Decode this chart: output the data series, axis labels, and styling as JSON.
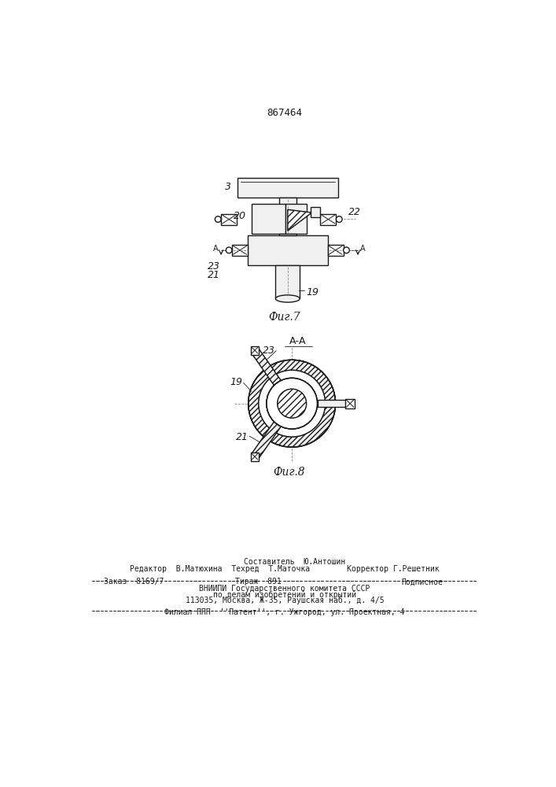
{
  "patent_number": "867464",
  "background_color": "#ffffff",
  "line_color": "#1a1a1a",
  "fig7_label": "Фиг.7",
  "fig8_label": "Фиг.8",
  "section_label": "А-А",
  "footer_line1": "Составитель  Ю.Антошин",
  "footer_line2": "Редактор  В.Матюхина  Техред  Т.Маточка        Корректор Г.Решетник",
  "footer_line3a": "Заказ  8169/7",
  "footer_line3b": "Тираж  891",
  "footer_line3c": "Подписное",
  "footer_line4": "ВНИИПИ Государственного комитета СССР",
  "footer_line5": "по делам изобретений и открытий",
  "footer_line6": "113035, Москва, Ж-35, Раушская наб., д. 4/5",
  "footer_line7": "Филиал ППП  ''Патент'', г. Ужгород, ул. Проектная, 4"
}
